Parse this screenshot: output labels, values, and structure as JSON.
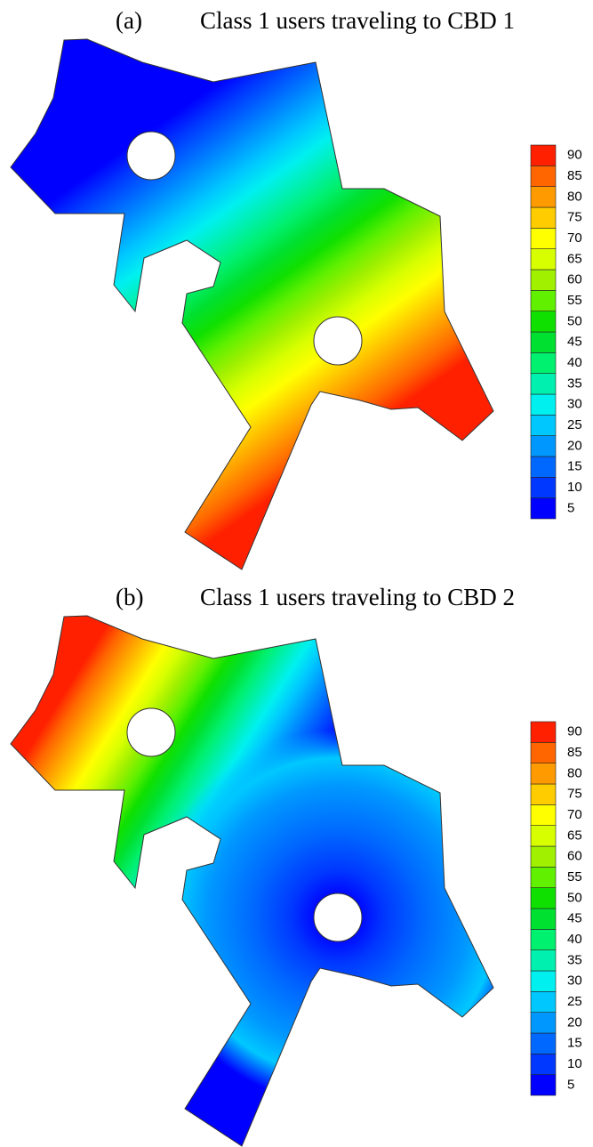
{
  "chart_data": [
    {
      "type": "contour",
      "label": "(a)",
      "title": "Class 1 users traveling to CBD 1",
      "colorbar": {
        "ticks": [
          5,
          10,
          15,
          20,
          25,
          30,
          35,
          40,
          45,
          50,
          55,
          60,
          65,
          70,
          75,
          80,
          85,
          90
        ],
        "colors": [
          "#0000ff",
          "#0038ff",
          "#0068ff",
          "#0098ff",
          "#00c8ff",
          "#00f0f0",
          "#00f0b0",
          "#00f070",
          "#00e030",
          "#10e000",
          "#60f000",
          "#a0f000",
          "#d8ff00",
          "#ffff00",
          "#ffcc00",
          "#ff9a00",
          "#ff6600",
          "#ff2000"
        ]
      }
    },
    {
      "type": "contour",
      "label": "(b)",
      "title": "Class 1 users traveling to CBD 2",
      "colorbar": {
        "ticks": [
          5,
          10,
          15,
          20,
          25,
          30,
          35,
          40,
          45,
          50,
          55,
          60,
          65,
          70,
          75,
          80,
          85,
          90
        ],
        "colors": [
          "#0000ff",
          "#0038ff",
          "#0068ff",
          "#0098ff",
          "#00c8ff",
          "#00f0f0",
          "#00f0b0",
          "#00f070",
          "#00e030",
          "#10e000",
          "#60f000",
          "#a0f000",
          "#d8ff00",
          "#ffff00",
          "#ffcc00",
          "#ff9a00",
          "#ff6600",
          "#ff2000"
        ]
      }
    }
  ]
}
